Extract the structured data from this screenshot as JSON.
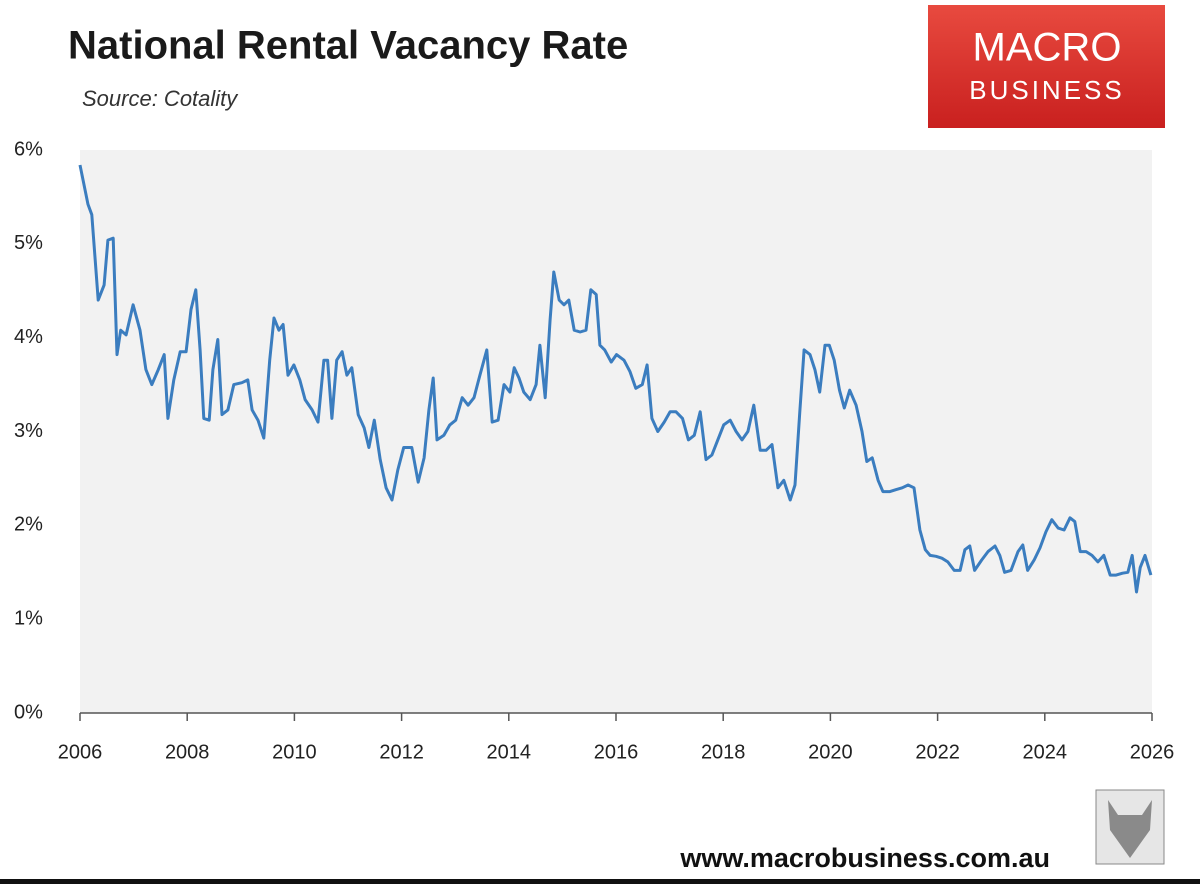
{
  "chart_data": {
    "type": "line",
    "title": "National Rental Vacancy Rate",
    "subtitle": "Source: Cotality",
    "color": "#3b7dbf",
    "xlim": [
      2006,
      2026
    ],
    "xticks": [
      2006,
      2008,
      2010,
      2012,
      2014,
      2016,
      2018,
      2020,
      2022,
      2024,
      2026
    ],
    "ylim": [
      0,
      6
    ],
    "yticks": [
      {
        "value": 0,
        "label": "0%"
      },
      {
        "value": 1,
        "label": "1%"
      },
      {
        "value": 2,
        "label": "2%"
      },
      {
        "value": 3,
        "label": "3%"
      },
      {
        "value": 4,
        "label": "4%"
      },
      {
        "value": 5,
        "label": "5%"
      },
      {
        "value": 6,
        "label": "6%"
      }
    ],
    "x": [
      2006.0,
      2006.15,
      2006.22,
      2006.34,
      2006.45,
      2006.52,
      2006.62,
      2006.69,
      2006.76,
      2006.86,
      2006.99,
      2007.12,
      2007.23,
      2007.34,
      2007.46,
      2007.57,
      2007.64,
      2007.75,
      2007.87,
      2007.98,
      2008.07,
      2008.16,
      2008.24,
      2008.31,
      2008.41,
      2008.48,
      2008.57,
      2008.65,
      2008.76,
      2008.87,
      2009.02,
      2009.13,
      2009.21,
      2009.32,
      2009.43,
      2009.54,
      2009.62,
      2009.71,
      2009.79,
      2009.88,
      2009.99,
      2010.1,
      2010.2,
      2010.33,
      2010.44,
      2010.55,
      2010.62,
      2010.7,
      2010.79,
      2010.89,
      2010.98,
      2011.07,
      2011.19,
      2011.3,
      2011.39,
      2011.49,
      2011.6,
      2011.71,
      2011.82,
      2011.93,
      2012.04,
      2012.19,
      2012.31,
      2012.42,
      2012.51,
      2012.59,
      2012.66,
      2012.79,
      2012.9,
      2013.01,
      2013.13,
      2013.24,
      2013.35,
      2013.46,
      2013.59,
      2013.69,
      2013.8,
      2013.91,
      2014.02,
      2014.1,
      2014.19,
      2014.28,
      2014.4,
      2014.51,
      2014.58,
      2014.68,
      2014.77,
      2014.84,
      2014.94,
      2015.03,
      2015.12,
      2015.22,
      2015.33,
      2015.44,
      2015.53,
      2015.63,
      2015.7,
      2015.79,
      2015.91,
      2016.01,
      2016.15,
      2016.26,
      2016.37,
      2016.49,
      2016.58,
      2016.67,
      2016.78,
      2016.9,
      2017.01,
      2017.12,
      2017.24,
      2017.35,
      2017.46,
      2017.57,
      2017.68,
      2017.79,
      2017.9,
      2018.01,
      2018.13,
      2018.24,
      2018.35,
      2018.46,
      2018.57,
      2018.69,
      2018.8,
      2018.91,
      2019.02,
      2019.13,
      2019.25,
      2019.34,
      2019.43,
      2019.51,
      2019.62,
      2019.71,
      2019.8,
      2019.9,
      2019.98,
      2020.07,
      2020.17,
      2020.26,
      2020.36,
      2020.48,
      2020.59,
      2020.68,
      2020.78,
      2020.89,
      2020.98,
      2021.11,
      2021.22,
      2021.34,
      2021.45,
      2021.56,
      2021.67,
      2021.77,
      2021.86,
      2021.97,
      2022.08,
      2022.19,
      2022.31,
      2022.42,
      2022.51,
      2022.6,
      2022.69,
      2022.82,
      2022.94,
      2023.07,
      2023.16,
      2023.25,
      2023.37,
      2023.5,
      2023.59,
      2023.68,
      2023.8,
      2023.91,
      2024.02,
      2024.13,
      2024.25,
      2024.36,
      2024.47,
      2024.56,
      2024.66,
      2024.77,
      2024.88,
      2024.99,
      2025.1,
      2025.22,
      2025.33,
      2025.45,
      2025.55,
      2025.63,
      2025.71,
      2025.78,
      2025.87,
      2025.98
    ],
    "values": [
      5.84,
      5.42,
      5.31,
      4.4,
      4.56,
      5.04,
      5.06,
      3.82,
      4.08,
      4.03,
      4.35,
      4.08,
      3.66,
      3.5,
      3.66,
      3.82,
      3.14,
      3.55,
      3.85,
      3.85,
      4.3,
      4.51,
      3.87,
      3.14,
      3.12,
      3.66,
      3.98,
      3.18,
      3.23,
      3.5,
      3.52,
      3.55,
      3.23,
      3.12,
      2.93,
      3.76,
      4.21,
      4.08,
      4.14,
      3.6,
      3.71,
      3.55,
      3.34,
      3.23,
      3.1,
      3.76,
      3.76,
      3.14,
      3.76,
      3.85,
      3.6,
      3.68,
      3.18,
      3.04,
      2.83,
      3.12,
      2.7,
      2.4,
      2.27,
      2.59,
      2.83,
      2.83,
      2.46,
      2.72,
      3.23,
      3.57,
      2.91,
      2.96,
      3.07,
      3.12,
      3.36,
      3.28,
      3.36,
      3.6,
      3.87,
      3.1,
      3.12,
      3.5,
      3.42,
      3.68,
      3.57,
      3.42,
      3.34,
      3.5,
      3.92,
      3.36,
      4.19,
      4.7,
      4.4,
      4.35,
      4.4,
      4.08,
      4.06,
      4.08,
      4.51,
      4.46,
      3.92,
      3.87,
      3.74,
      3.82,
      3.76,
      3.64,
      3.46,
      3.5,
      3.71,
      3.14,
      3.0,
      3.1,
      3.21,
      3.21,
      3.14,
      2.91,
      2.96,
      3.21,
      2.7,
      2.75,
      2.91,
      3.07,
      3.12,
      3.0,
      2.91,
      3.0,
      3.28,
      2.8,
      2.8,
      2.86,
      2.4,
      2.48,
      2.27,
      2.43,
      3.21,
      3.87,
      3.82,
      3.66,
      3.42,
      3.92,
      3.92,
      3.76,
      3.44,
      3.25,
      3.44,
      3.28,
      3.0,
      2.68,
      2.72,
      2.48,
      2.36,
      2.36,
      2.38,
      2.4,
      2.43,
      2.4,
      1.95,
      1.74,
      1.68,
      1.67,
      1.65,
      1.61,
      1.52,
      1.52,
      1.74,
      1.78,
      1.52,
      1.63,
      1.72,
      1.78,
      1.68,
      1.5,
      1.52,
      1.72,
      1.79,
      1.52,
      1.63,
      1.76,
      1.93,
      2.06,
      1.97,
      1.95,
      2.08,
      2.04,
      1.72,
      1.72,
      1.68,
      1.61,
      1.68,
      1.47,
      1.47,
      1.49,
      1.5,
      1.68,
      1.29,
      1.55,
      1.68,
      1.47
    ]
  },
  "logo": [
    "MACRO",
    "BUSINESS"
  ],
  "footer": "www.macrobusiness.com.au"
}
